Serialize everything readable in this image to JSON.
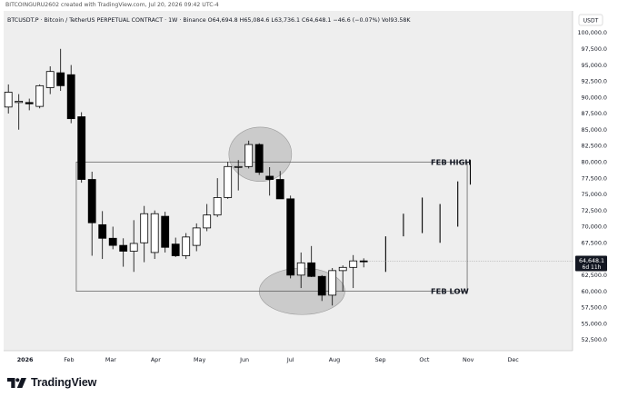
{
  "caption": "BITCOINGURU2602 created with TradingView.com, Jul 20, 2026 09:42 UTC-4",
  "chart_data": {
    "type": "candlestick",
    "title": "BTCUSDT.P · Bitcoin / TetherUS PERPETUAL CONTRACT · 1W · Binance",
    "ohlc_header": {
      "o_label": "O",
      "o": "64,694.8",
      "h_label": "H",
      "h": "65,084.6",
      "l_label": "L",
      "l": "63,736.1",
      "c_label": "C",
      "c": "64,648.1",
      "change": "−46.6 (−0.07%)",
      "vol_label": "Vol",
      "vol": "93.58K"
    },
    "currency": "USDT",
    "ylim": [
      50000,
      102000
    ],
    "y_ticks": [
      "100,000.0",
      "97,500.0",
      "95,000.0",
      "92,500.0",
      "90,000.0",
      "87,500.0",
      "85,000.0",
      "82,500.0",
      "80,000.0",
      "77,500.0",
      "75,000.0",
      "72,500.0",
      "70,000.0",
      "67,500.0",
      "65,000.0",
      "62,500.0",
      "60,000.0",
      "57,500.0",
      "55,000.0",
      "52,500.0"
    ],
    "y_tick_values": [
      100000,
      97500,
      95000,
      92500,
      90000,
      87500,
      85000,
      82500,
      80000,
      77500,
      75000,
      72500,
      70000,
      67500,
      65000,
      62500,
      60000,
      57500,
      55000,
      52500
    ],
    "x_labels": [
      {
        "t": "2026",
        "i": 1.6,
        "bold": true
      },
      {
        "t": "Feb",
        "i": 5.8
      },
      {
        "t": "Mar",
        "i": 9.8
      },
      {
        "t": "Apr",
        "i": 14.1
      },
      {
        "t": "May",
        "i": 18.3
      },
      {
        "t": "Jun",
        "i": 22.6
      },
      {
        "t": "Jul",
        "i": 27.0
      },
      {
        "t": "Aug",
        "i": 31.2
      },
      {
        "t": "Sep",
        "i": 35.6
      },
      {
        "t": "Oct",
        "i": 39.8
      },
      {
        "t": "Nov",
        "i": 44.0
      },
      {
        "t": "Dec",
        "i": 48.3
      }
    ],
    "candles": [
      {
        "o": 88500,
        "h": 92000,
        "l": 87500,
        "c": 90800
      },
      {
        "o": 89200,
        "h": 90500,
        "l": 85000,
        "c": 89400
      },
      {
        "o": 89200,
        "h": 89800,
        "l": 88000,
        "c": 89000
      },
      {
        "o": 88600,
        "h": 92000,
        "l": 88300,
        "c": 91800
      },
      {
        "o": 91500,
        "h": 94800,
        "l": 90500,
        "c": 94000
      },
      {
        "o": 93800,
        "h": 97500,
        "l": 91000,
        "c": 91800
      },
      {
        "o": 93500,
        "h": 95000,
        "l": 86000,
        "c": 86700
      },
      {
        "o": 87000,
        "h": 87700,
        "l": 76800,
        "c": 77300
      },
      {
        "o": 77300,
        "h": 78500,
        "l": 65500,
        "c": 70600
      },
      {
        "o": 70300,
        "h": 72400,
        "l": 65000,
        "c": 68200
      },
      {
        "o": 68200,
        "h": 70000,
        "l": 66500,
        "c": 67100
      },
      {
        "o": 67100,
        "h": 68200,
        "l": 63800,
        "c": 66200
      },
      {
        "o": 66200,
        "h": 71000,
        "l": 63000,
        "c": 67400
      },
      {
        "o": 67500,
        "h": 73200,
        "l": 64500,
        "c": 72000
      },
      {
        "o": 66000,
        "h": 72500,
        "l": 65000,
        "c": 72000
      },
      {
        "o": 71600,
        "h": 72300,
        "l": 66000,
        "c": 66800
      },
      {
        "o": 67300,
        "h": 68300,
        "l": 65300,
        "c": 65500
      },
      {
        "o": 65500,
        "h": 69000,
        "l": 65000,
        "c": 68400
      },
      {
        "o": 67100,
        "h": 70500,
        "l": 66200,
        "c": 69800
      },
      {
        "o": 69800,
        "h": 73500,
        "l": 69300,
        "c": 71800
      },
      {
        "o": 71800,
        "h": 77500,
        "l": 71500,
        "c": 74500
      },
      {
        "o": 74500,
        "h": 80000,
        "l": 74300,
        "c": 79300
      },
      {
        "o": 79300,
        "h": 80300,
        "l": 75600,
        "c": 79300
      },
      {
        "o": 79300,
        "h": 83300,
        "l": 79000,
        "c": 82700
      },
      {
        "o": 82700,
        "h": 82900,
        "l": 78000,
        "c": 78400
      },
      {
        "o": 77800,
        "h": 79200,
        "l": 74800,
        "c": 77300
      },
      {
        "o": 77300,
        "h": 78600,
        "l": 74800,
        "c": 74300
      },
      {
        "o": 74300,
        "h": 74800,
        "l": 62000,
        "c": 62500
      },
      {
        "o": 62500,
        "h": 66000,
        "l": 60500,
        "c": 64400
      },
      {
        "o": 64400,
        "h": 67000,
        "l": 62200,
        "c": 62300
      },
      {
        "o": 62300,
        "h": 62500,
        "l": 58500,
        "c": 59400
      },
      {
        "o": 59400,
        "h": 63600,
        "l": 57800,
        "c": 63200
      },
      {
        "o": 63200,
        "h": 64000,
        "l": 60000,
        "c": 63700
      },
      {
        "o": 63700,
        "h": 65600,
        "l": 60500,
        "c": 64700
      },
      {
        "o": 64700,
        "h": 65100,
        "l": 63700,
        "c": 64600
      }
    ],
    "projection_bars": [
      {
        "i": 36.1,
        "lo": 63000,
        "hi": 68500
      },
      {
        "i": 37.8,
        "lo": 68500,
        "hi": 72000
      },
      {
        "i": 39.6,
        "lo": 69000,
        "hi": 74500
      },
      {
        "i": 41.3,
        "lo": 67500,
        "hi": 73500
      },
      {
        "i": 43.0,
        "lo": 70000,
        "hi": 77000
      },
      {
        "i": 44.2,
        "lo": 76500,
        "hi": 80300
      }
    ],
    "box": {
      "i_start": 6.5,
      "i_end": 43.9,
      "high": 80000,
      "low": 60000
    },
    "top_ellipse": {
      "i": 24.1,
      "y_top": 85400,
      "y_bottom": 77000,
      "half_w": 3.0
    },
    "bottom_ellipse": {
      "i": 28.1,
      "y_top": 63600,
      "y_bottom": 56400,
      "half_w": 4.1
    },
    "labels": {
      "feb_high": "FEB HIGH",
      "feb_low": "FEB LOW"
    },
    "last_price": {
      "value": 64648.1,
      "text": "64,648.1",
      "countdown": "6d 11h"
    },
    "colors": {
      "up": "#ffffff",
      "down": "#000000",
      "wick": "#000000",
      "bg": "#eeeeee",
      "ellipse": "#cbcbcb"
    }
  },
  "footer": {
    "brand": "TradingView"
  }
}
